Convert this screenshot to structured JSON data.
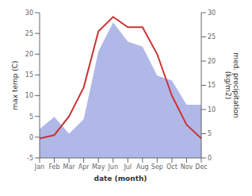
{
  "chart_data": {
    "type": "line",
    "xlabel": "date (month)",
    "ylabel": "max temp (C)",
    "y2label": "med. precipitation\n(kg/m2)",
    "categories": [
      "Jan",
      "Feb",
      "Mar",
      "Apr",
      "May",
      "Jun",
      "Jul",
      "Aug",
      "Sep",
      "Oct",
      "Nov",
      "Dec"
    ],
    "series": [
      {
        "type": "area",
        "axis": "y2",
        "color": "#b0b8e8",
        "values": [
          6.0,
          8.5,
          5.0,
          8.0,
          22.0,
          28.0,
          24.0,
          23.0,
          17.0,
          16.0,
          11.0,
          11.0
        ]
      },
      {
        "type": "line",
        "color": "#cc3333",
        "values": [
          -0.3,
          0.5,
          5.0,
          12.0,
          25.5,
          29.0,
          26.5,
          26.5,
          20.0,
          10.0,
          3.0,
          -0.3
        ]
      }
    ],
    "ylim": [
      -5,
      30
    ],
    "yticks": [
      -5,
      0,
      5,
      10,
      15,
      20,
      25,
      30
    ],
    "y2lim": [
      0,
      30
    ],
    "y2ticks": [
      0,
      5,
      10,
      15,
      20,
      25,
      30
    ],
    "grid": false
  }
}
